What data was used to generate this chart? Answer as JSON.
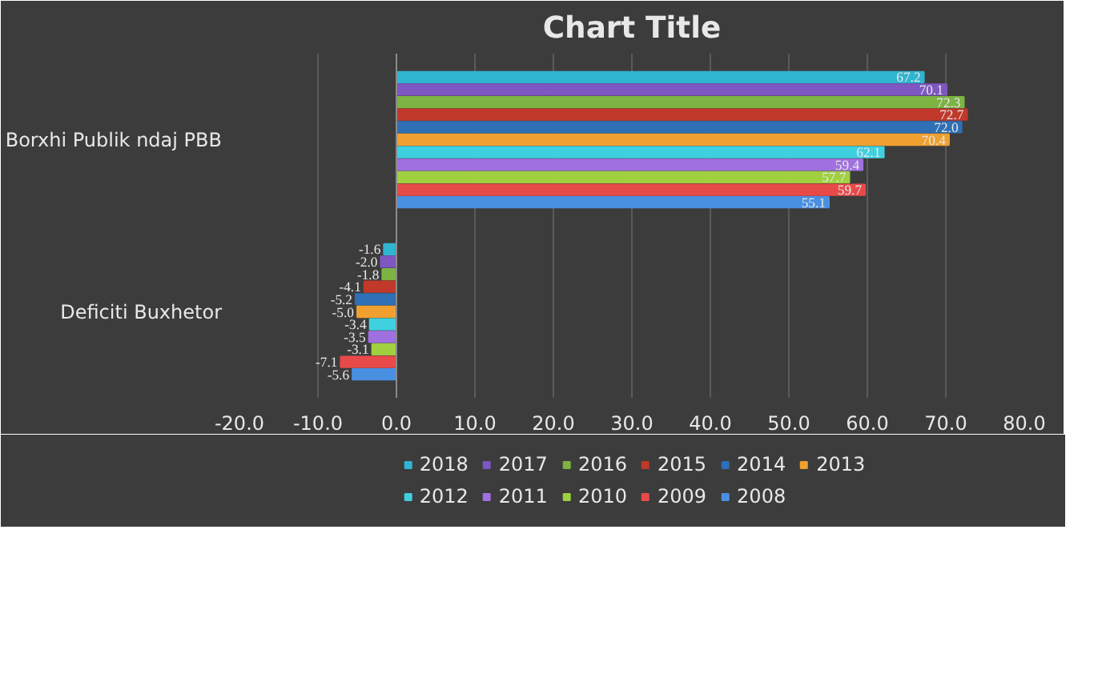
{
  "chart_data": {
    "type": "bar",
    "orientation": "horizontal",
    "title": "Chart Title",
    "categories": [
      "Borxhi Publik ndaj PBB",
      "Deficiti Buxhetor"
    ],
    "series": [
      {
        "name": "2018",
        "color": "#2fb5d0",
        "values": [
          67.2,
          -1.6
        ],
        "value_labels": [
          "67.2",
          "-1.6"
        ]
      },
      {
        "name": "2017",
        "color": "#7e57c2",
        "values": [
          70.1,
          -2.0
        ],
        "value_labels": [
          "70.1",
          "-2.0"
        ]
      },
      {
        "name": "2016",
        "color": "#7cb342",
        "values": [
          72.3,
          -1.8
        ],
        "value_labels": [
          "72.3",
          "-1.8"
        ]
      },
      {
        "name": "2015",
        "color": "#c0392b",
        "values": [
          72.7,
          -4.1
        ],
        "value_labels": [
          "72.7",
          "-4.1"
        ]
      },
      {
        "name": "2014",
        "color": "#2f6fb5",
        "values": [
          72.0,
          -5.2
        ],
        "value_labels": [
          "72.0",
          "-5.2"
        ]
      },
      {
        "name": "2013",
        "color": "#f0a030",
        "values": [
          70.4,
          -5.0
        ],
        "value_labels": [
          "70.4",
          "-5.0"
        ]
      },
      {
        "name": "2012",
        "color": "#3fd0e0",
        "values": [
          62.1,
          -3.4
        ],
        "value_labels": [
          "62.1",
          "-3.4"
        ]
      },
      {
        "name": "2011",
        "color": "#a070e0",
        "values": [
          59.4,
          -3.5
        ],
        "value_labels": [
          "59.4",
          "-3.5"
        ]
      },
      {
        "name": "2010",
        "color": "#a0d040",
        "values": [
          57.7,
          -3.1
        ],
        "value_labels": [
          "57.7",
          "-3.1"
        ]
      },
      {
        "name": "2009",
        "color": "#e84a4a",
        "values": [
          59.7,
          -7.1
        ],
        "value_labels": [
          "59.7",
          "-7.1"
        ]
      },
      {
        "name": "2008",
        "color": "#4a90e2",
        "values": [
          55.1,
          -5.6
        ],
        "value_labels": [
          "55.1",
          "-5.6"
        ]
      }
    ],
    "xlim": [
      -20,
      80
    ],
    "xticks": [
      {
        "value": -20,
        "label": "-20.0"
      },
      {
        "value": -10,
        "label": "-10.0"
      },
      {
        "value": 0,
        "label": "0.0"
      },
      {
        "value": 10,
        "label": "10.0"
      },
      {
        "value": 20,
        "label": "20.0"
      },
      {
        "value": 30,
        "label": "30.0"
      },
      {
        "value": 40,
        "label": "40.0"
      },
      {
        "value": 50,
        "label": "50.0"
      },
      {
        "value": 60,
        "label": "60.0"
      },
      {
        "value": 70,
        "label": "70.0"
      },
      {
        "value": 80,
        "label": "80.0"
      }
    ],
    "grid": "x",
    "legend": "bottom"
  }
}
